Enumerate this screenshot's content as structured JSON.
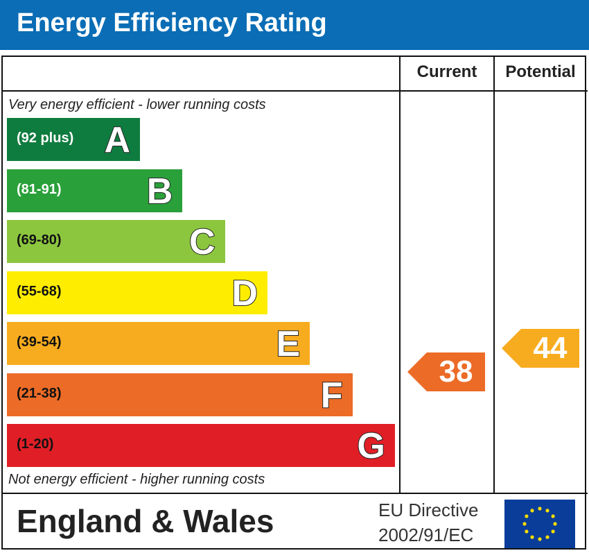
{
  "header": {
    "title": "Energy Efficiency Rating"
  },
  "columns": {
    "current": "Current",
    "potential": "Potential"
  },
  "notes": {
    "top": "Very energy efficient - lower running costs",
    "bottom": "Not energy efficient - higher running costs"
  },
  "chart_data": {
    "type": "bar",
    "categories": [
      "A",
      "B",
      "C",
      "D",
      "E",
      "F",
      "G"
    ],
    "bands": [
      {
        "letter": "A",
        "range": "(92 plus)",
        "min": 92,
        "max": 100,
        "color": "#0f7c3f",
        "range_color": "#ffffff"
      },
      {
        "letter": "B",
        "range": "(81-91)",
        "min": 81,
        "max": 91,
        "color": "#2aa03b",
        "range_color": "#ffffff"
      },
      {
        "letter": "C",
        "range": "(69-80)",
        "min": 69,
        "max": 80,
        "color": "#8cc63f",
        "range_color": "#111111"
      },
      {
        "letter": "D",
        "range": "(55-68)",
        "min": 55,
        "max": 68,
        "color": "#ffed00",
        "range_color": "#111111"
      },
      {
        "letter": "E",
        "range": "(39-54)",
        "min": 39,
        "max": 54,
        "color": "#f7ac1f",
        "range_color": "#111111"
      },
      {
        "letter": "F",
        "range": "(21-38)",
        "min": 21,
        "max": 38,
        "color": "#ec6b26",
        "range_color": "#111111"
      },
      {
        "letter": "G",
        "range": "(1-20)",
        "min": 1,
        "max": 20,
        "color": "#e01e26",
        "range_color": "#111111"
      }
    ],
    "current": {
      "value": 38,
      "label": "38",
      "band": "F",
      "color": "#ec6b26"
    },
    "potential": {
      "value": 44,
      "label": "44",
      "band": "E",
      "color": "#f7ac1f"
    }
  },
  "footer": {
    "region": "England & Wales",
    "eu_line1": "EU Directive",
    "eu_line2": "2002/91/EC"
  }
}
